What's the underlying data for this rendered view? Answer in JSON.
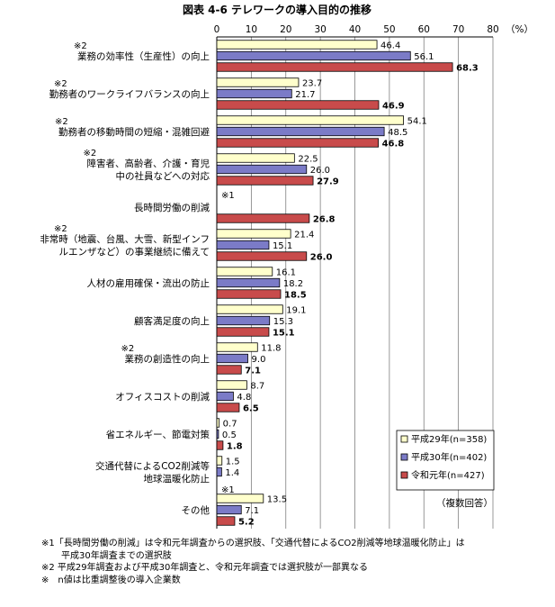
{
  "chart_data": {
    "type": "bar",
    "orientation": "horizontal",
    "title": "図表 4-6 テレワークの導入目的の推移",
    "unit": "（%）",
    "xlim": [
      0,
      80
    ],
    "xticks": [
      "0",
      "10",
      "20",
      "30",
      "40",
      "50",
      "60",
      "70",
      "80"
    ],
    "grid": true,
    "legend_position": "bottom-right",
    "series": [
      {
        "name": "平成29年(n=358)",
        "color": "#ffffcc"
      },
      {
        "name": "平成30年(n=402)",
        "color": "#7b7bc7"
      },
      {
        "name": "令和元年(n=427)",
        "color": "#c84b4b"
      }
    ],
    "categories": [
      {
        "note": "※2",
        "label": [
          "業務の効率性（生産性）の向上"
        ],
        "values": [
          46.4,
          56.1,
          68.3
        ],
        "value_labels": [
          "46.4",
          "56.1",
          "68.3"
        ]
      },
      {
        "note": "※2",
        "label": [
          "勤務者のワークライフバランスの向上"
        ],
        "values": [
          23.7,
          21.7,
          46.9
        ],
        "value_labels": [
          "23.7",
          "21.7",
          "46.9"
        ]
      },
      {
        "note": "※2",
        "label": [
          "勤務者の移動時間の短縮・混雑回避"
        ],
        "values": [
          54.1,
          48.5,
          46.8
        ],
        "value_labels": [
          "54.1",
          "48.5",
          "46.8"
        ]
      },
      {
        "note": "※2",
        "label": [
          "障害者、高齢者、介護・育児",
          "中の社員などへの対応"
        ],
        "values": [
          22.5,
          26.0,
          27.9
        ],
        "value_labels": [
          "22.5",
          "26.0",
          "27.9"
        ]
      },
      {
        "note": "※1",
        "label": [
          "長時間労働の削減"
        ],
        "values": [
          null,
          null,
          26.8
        ],
        "value_labels": [
          "",
          "",
          "26.8"
        ]
      },
      {
        "note": "※2",
        "label": [
          "非常時（地震、台風、大雪、新型インフ",
          "ルエンザなど）の事業継続に備えて"
        ],
        "values": [
          21.4,
          15.1,
          26.0
        ],
        "value_labels": [
          "21.4",
          "15.1",
          "26.0"
        ]
      },
      {
        "note": "",
        "label": [
          "人材の雇用確保・流出の防止"
        ],
        "values": [
          16.1,
          18.2,
          18.5
        ],
        "value_labels": [
          "16.1",
          "18.2",
          "18.5"
        ]
      },
      {
        "note": "",
        "label": [
          "顧客満足度の向上"
        ],
        "values": [
          19.1,
          15.3,
          15.1
        ],
        "value_labels": [
          "19.1",
          "15.3",
          "15.1"
        ]
      },
      {
        "note": "※2",
        "label": [
          "業務の創造性の向上"
        ],
        "values": [
          11.8,
          9.0,
          7.1
        ],
        "value_labels": [
          "11.8",
          "9.0",
          "7.1"
        ]
      },
      {
        "note": "",
        "label": [
          "オフィスコストの削減"
        ],
        "values": [
          8.7,
          4.8,
          6.5
        ],
        "value_labels": [
          "8.7",
          "4.8",
          "6.5"
        ]
      },
      {
        "note": "",
        "label": [
          "省エネルギー、節電対策"
        ],
        "values": [
          0.7,
          0.5,
          1.8
        ],
        "value_labels": [
          "0.7",
          "0.5",
          "1.8"
        ]
      },
      {
        "note": "※1",
        "label": [
          "交通代替によるCO2削減等",
          "地球温暖化防止"
        ],
        "values": [
          1.5,
          1.4,
          null
        ],
        "value_labels": [
          "1.5",
          "1.4",
          ""
        ]
      },
      {
        "note": "",
        "label": [
          "その他"
        ],
        "values": [
          13.5,
          7.1,
          5.2
        ],
        "value_labels": [
          "13.5",
          "7.1",
          "5.2"
        ]
      }
    ],
    "annotation": "（複数回答）"
  },
  "notes": [
    "※1「長時間労働の削減」は令和元年調査からの選択肢、「交通代替によるCO2削減等地球温暖化防止」は",
    "平成30年調査までの選択肢",
    "※2 平成29年調査および平成30年調査と、令和元年調査では選択肢が一部異なる",
    "※　n値は比重調整後の導入企業数"
  ]
}
